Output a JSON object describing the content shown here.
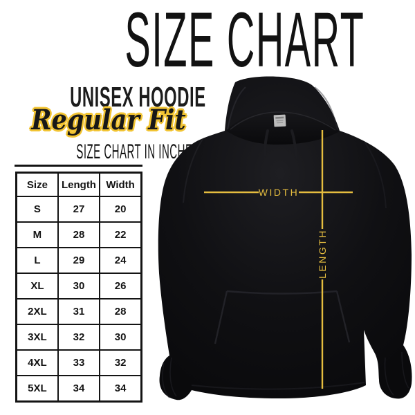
{
  "title": "SIZE CHART",
  "product": {
    "name": "UNISEX HOODIE",
    "fit": "Regular Fit"
  },
  "table_section": {
    "heading": "SIZE CHART IN INCHES",
    "units": "inches"
  },
  "size_table": {
    "columns": [
      "Size",
      "Length",
      "Width"
    ],
    "rows": [
      [
        "S",
        "27",
        "20"
      ],
      [
        "M",
        "28",
        "22"
      ],
      [
        "L",
        "29",
        "24"
      ],
      [
        "XL",
        "30",
        "26"
      ],
      [
        "2XL",
        "31",
        "28"
      ],
      [
        "3XL",
        "32",
        "30"
      ],
      [
        "4XL",
        "33",
        "32"
      ],
      [
        "5XL",
        "34",
        "34"
      ]
    ]
  },
  "diagram": {
    "width_label": "WIDTH",
    "length_label": "LENGTH",
    "line_color": "#E5BD3F",
    "garment": "black pullover hoodie, front view"
  },
  "colors": {
    "accent_yellow": "#F2C433",
    "ink": "#141414",
    "background": "#ffffff"
  }
}
